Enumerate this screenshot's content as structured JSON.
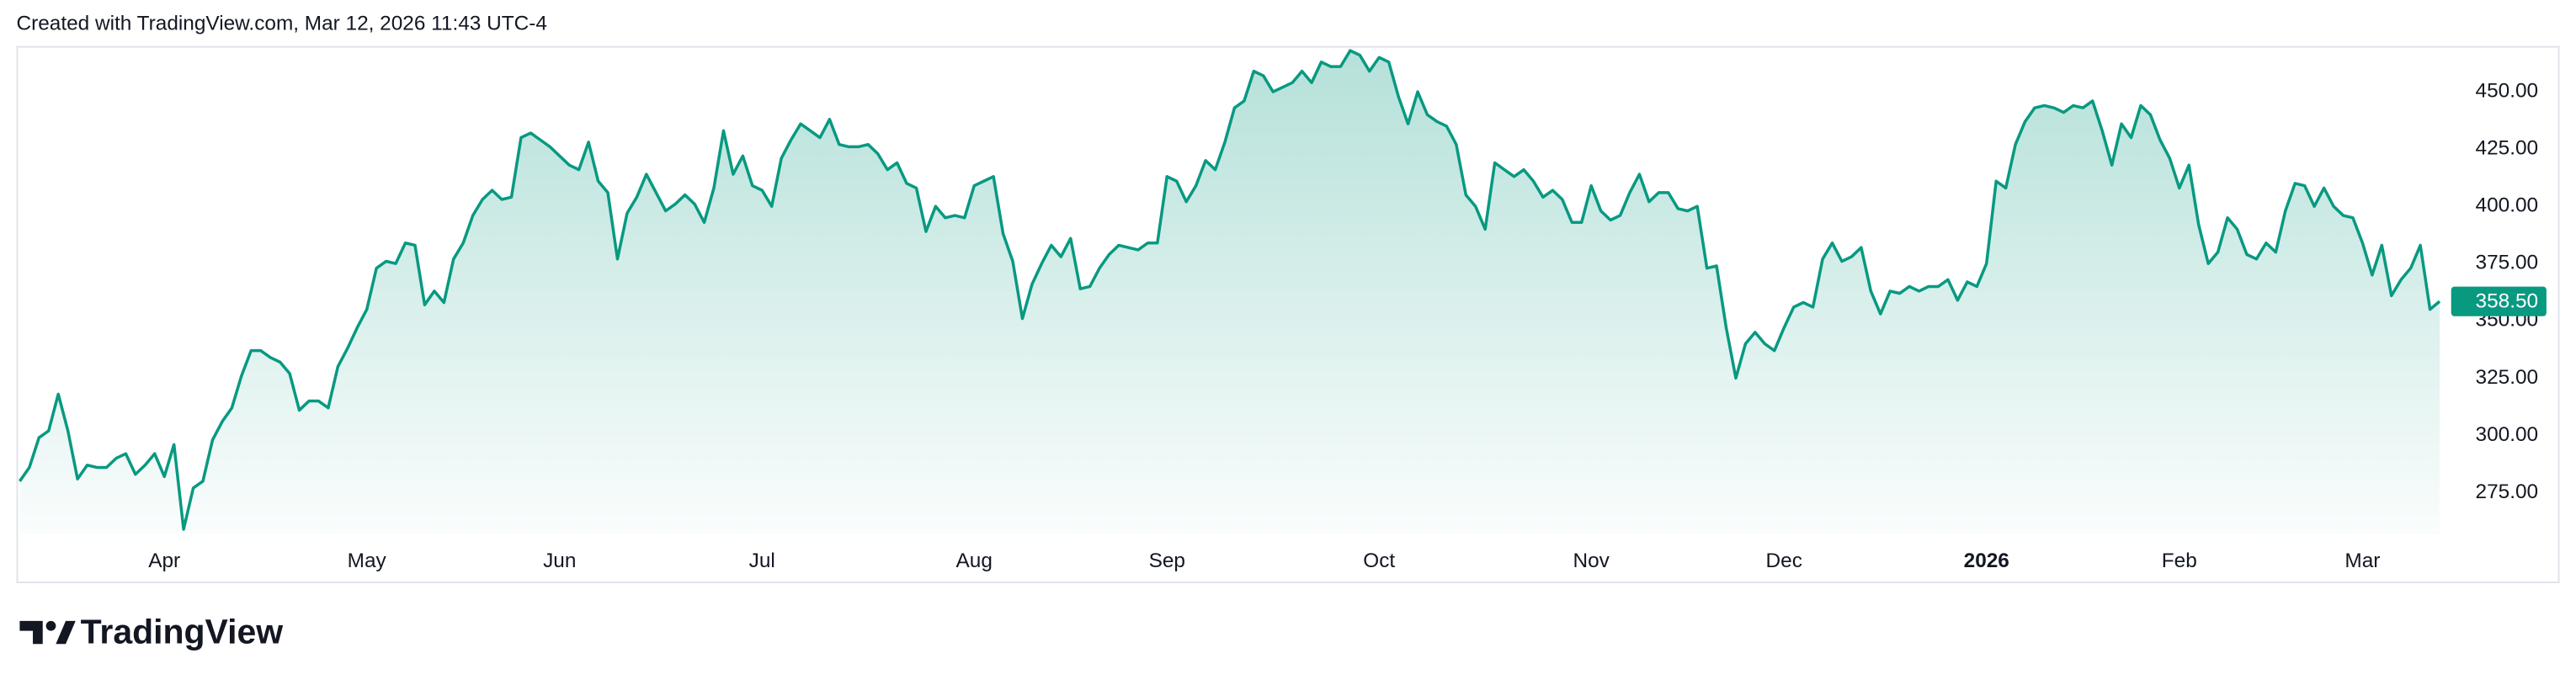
{
  "header": {
    "text": "Created with TradingView.com, Mar 12, 2026 11:43 UTC-4"
  },
  "footer": {
    "brand": "TradingView"
  },
  "chart_data": {
    "type": "area",
    "color": "#089981",
    "values": [
      280,
      286,
      299,
      302,
      318,
      302,
      281,
      287,
      286,
      286,
      290,
      292,
      283,
      287,
      292,
      282,
      296,
      259,
      277,
      280,
      298,
      306,
      312,
      326,
      337,
      337,
      334,
      332,
      327,
      311,
      315,
      315,
      312,
      330,
      338,
      347,
      355,
      373,
      376,
      375,
      384,
      383,
      357,
      363,
      358,
      377,
      384,
      396,
      403,
      407,
      403,
      404,
      430,
      432,
      429,
      426,
      422,
      418,
      416,
      428,
      411,
      406,
      377,
      397,
      404,
      414,
      406,
      398,
      401,
      405,
      401,
      393,
      408,
      433,
      414,
      422,
      409,
      407,
      400,
      421,
      429,
      436,
      433,
      430,
      438,
      427,
      426,
      426,
      427,
      423,
      416,
      419,
      410,
      408,
      389,
      400,
      395,
      396,
      395,
      409,
      411,
      413,
      388,
      376,
      351,
      366,
      375,
      383,
      378,
      386,
      364,
      365,
      373,
      379,
      383,
      382,
      381,
      384,
      384,
      413,
      411,
      402,
      409,
      420,
      416,
      428,
      443,
      446,
      459,
      457,
      450,
      452,
      454,
      459,
      454,
      463,
      461,
      461,
      468,
      466,
      459,
      465,
      463,
      448,
      436,
      450,
      440,
      437,
      435,
      427,
      405,
      400,
      390,
      419,
      416,
      413,
      416,
      411,
      404,
      407,
      403,
      393,
      393,
      409,
      398,
      394,
      396,
      406,
      414,
      402,
      406,
      406,
      399,
      398,
      400,
      373,
      374,
      347,
      325,
      340,
      345,
      340,
      337,
      347,
      356,
      358,
      356,
      377,
      384,
      376,
      378,
      382,
      363,
      353,
      363,
      362,
      365,
      363,
      365,
      365,
      368,
      359,
      367,
      365,
      375,
      411,
      408,
      427,
      437,
      443,
      444,
      443,
      441,
      444,
      443,
      446,
      433,
      418,
      436,
      430,
      444,
      440,
      429,
      421,
      408,
      418,
      392,
      375,
      380,
      395,
      390,
      379,
      377,
      384,
      380,
      398,
      410,
      409,
      400,
      408,
      400,
      396,
      395,
      384,
      370,
      383,
      361,
      368,
      373,
      383,
      355,
      358.5
    ],
    "xlim": [
      0,
      251
    ],
    "xticks": [
      {
        "value": 15,
        "label": "Apr"
      },
      {
        "value": 36,
        "label": "May"
      },
      {
        "value": 56,
        "label": "Jun"
      },
      {
        "value": 77,
        "label": "Jul"
      },
      {
        "value": 99,
        "label": "Aug"
      },
      {
        "value": 119,
        "label": "Sep"
      },
      {
        "value": 141,
        "label": "Oct"
      },
      {
        "value": 163,
        "label": "Nov"
      },
      {
        "value": 183,
        "label": "Dec"
      },
      {
        "value": 204,
        "label": "2026",
        "bold": true
      },
      {
        "value": 224,
        "label": "Feb"
      },
      {
        "value": 243,
        "label": "Mar"
      }
    ],
    "ylim": [
      257,
      470
    ],
    "yticks": [
      {
        "value": 275,
        "label": "275.00"
      },
      {
        "value": 300,
        "label": "300.00"
      },
      {
        "value": 325,
        "label": "325.00"
      },
      {
        "value": 350,
        "label": "350.00"
      },
      {
        "value": 375,
        "label": "375.00"
      },
      {
        "value": 400,
        "label": "400.00"
      },
      {
        "value": 425,
        "label": "425.00"
      },
      {
        "value": 450,
        "label": "450.00"
      }
    ],
    "current_price": {
      "value": 358.5,
      "label": "358.50"
    }
  }
}
